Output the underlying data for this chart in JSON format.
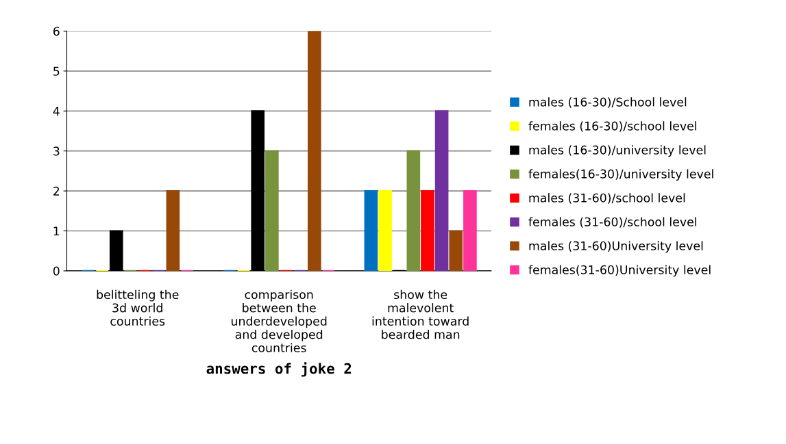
{
  "chart_data": {
    "type": "bar",
    "xlabel": "answers of joke 2",
    "categories": [
      "belitteling the 3d world countries",
      "comparison between the underdeveloped and developed countries",
      "show the malevolent intention toward bearded man"
    ],
    "series": [
      {
        "name": "males (16-30)/School level",
        "color": "#0070c0",
        "values": [
          0,
          0,
          2
        ]
      },
      {
        "name": "females (16-30)/school level",
        "color": "#ffff00",
        "values": [
          0,
          0,
          2
        ]
      },
      {
        "name": "males (16-30)/university level",
        "color": "#000000",
        "values": [
          1,
          4,
          0
        ]
      },
      {
        "name": "females(16-30)/university level",
        "color": "#77933c",
        "values": [
          0,
          3,
          3
        ]
      },
      {
        "name": "males (31-60)/school level",
        "color": "#ff0000",
        "values": [
          0,
          0,
          2
        ]
      },
      {
        "name": "females (31-60)/school level",
        "color": "#7030a0",
        "values": [
          0,
          0,
          4
        ]
      },
      {
        "name": "males (31-60)University level",
        "color": "#984807",
        "values": [
          2,
          6,
          1
        ]
      },
      {
        "name": "females(31-60)University level",
        "color": "#ff3399",
        "values": [
          0,
          0,
          2
        ]
      }
    ],
    "ylim": [
      0,
      6
    ],
    "yticks": [
      0,
      1,
      2,
      3,
      4,
      5,
      6
    ],
    "grid": "y",
    "legend": "right"
  }
}
